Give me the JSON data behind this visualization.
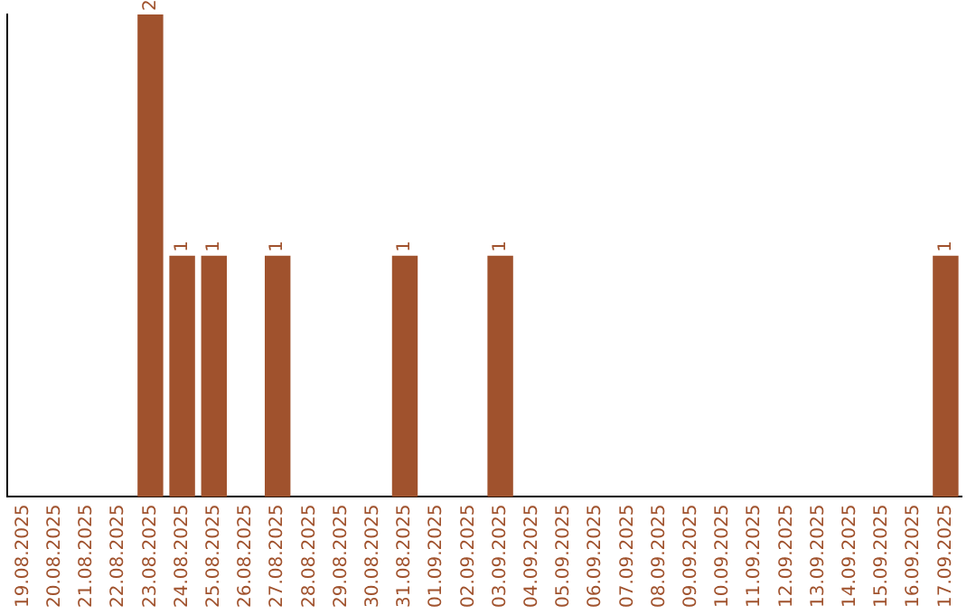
{
  "chart_data": {
    "type": "bar",
    "categories": [
      "19.08.2025",
      "20.08.2025",
      "21.08.2025",
      "22.08.2025",
      "23.08.2025",
      "24.08.2025",
      "25.08.2025",
      "26.08.2025",
      "27.08.2025",
      "28.08.2025",
      "29.08.2025",
      "30.08.2025",
      "31.08.2025",
      "01.09.2025",
      "02.09.2025",
      "03.09.2025",
      "04.09.2025",
      "05.09.2025",
      "06.09.2025",
      "07.09.2025",
      "08.09.2025",
      "09.09.2025",
      "10.09.2025",
      "11.09.2025",
      "12.09.2025",
      "13.09.2025",
      "14.09.2025",
      "15.09.2025",
      "16.09.2025",
      "17.09.2025"
    ],
    "values": [
      0,
      0,
      0,
      0,
      2,
      1,
      1,
      0,
      1,
      0,
      0,
      0,
      1,
      0,
      0,
      1,
      0,
      0,
      0,
      0,
      0,
      0,
      0,
      0,
      0,
      0,
      0,
      0,
      0,
      1
    ],
    "value_labels": [
      null,
      null,
      null,
      null,
      "2",
      "1",
      "1",
      null,
      "1",
      null,
      null,
      null,
      "1",
      null,
      null,
      "1",
      null,
      null,
      null,
      null,
      null,
      null,
      null,
      null,
      null,
      null,
      null,
      null,
      null,
      "1"
    ],
    "color": "#a0522d",
    "ylim": [
      0,
      2
    ],
    "grid": false,
    "legend": false,
    "tick_labels": "x"
  }
}
